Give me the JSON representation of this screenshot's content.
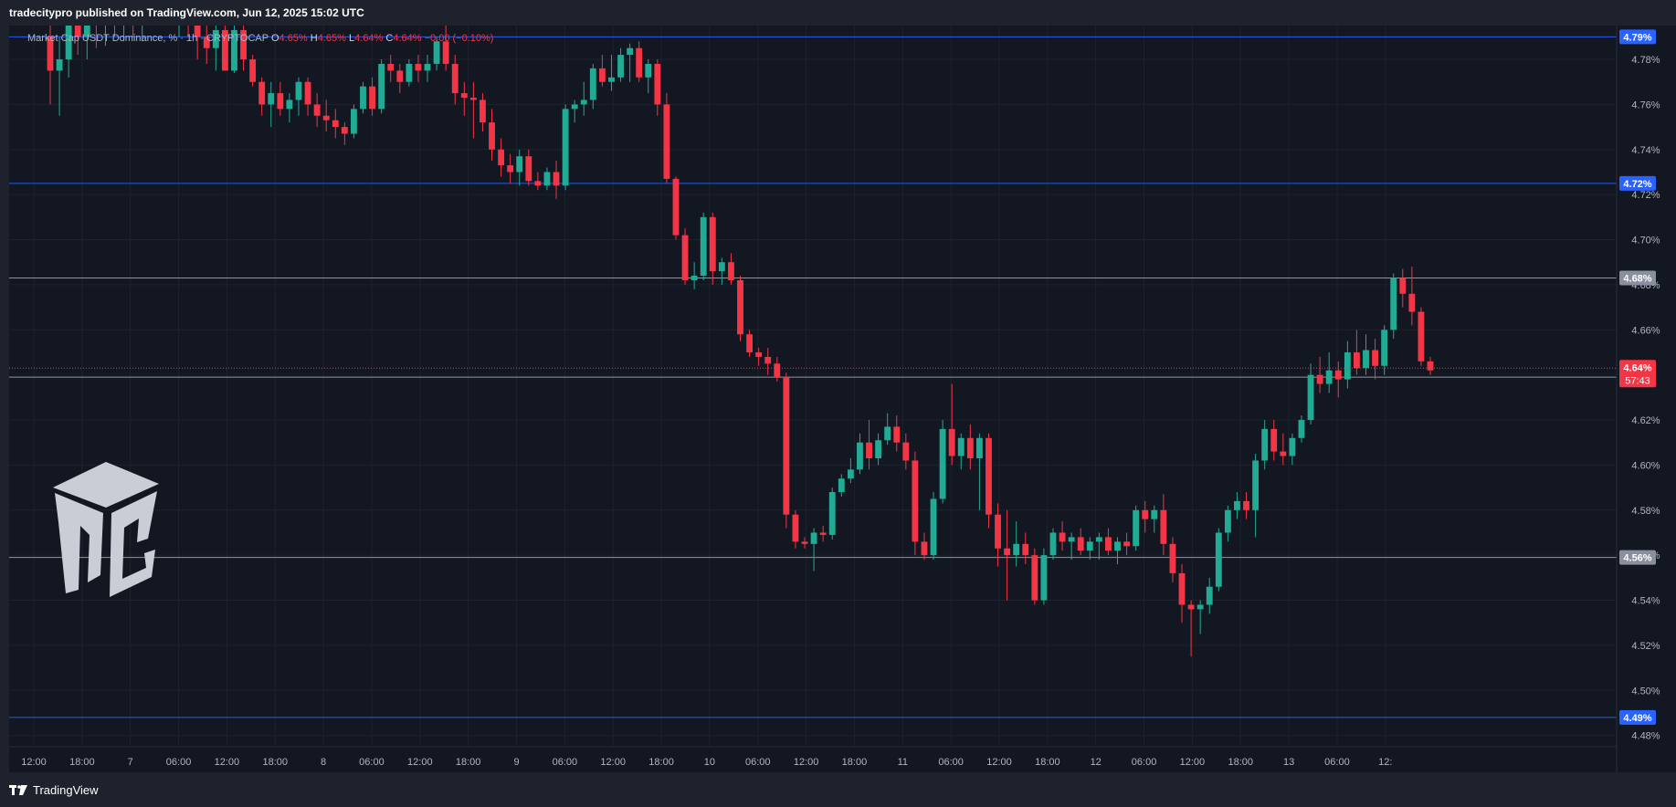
{
  "header": {
    "publish_text": "tradecitypro published on TradingView.com, Jun 12, 2025 15:02 UTC"
  },
  "legend": {
    "symbol": "Market Cap USDT Dominance, % · 1h · CRYPTOCAP",
    "o_label": "O",
    "o_value": "4.65%",
    "h_label": "H",
    "h_value": "4.65%",
    "l_label": "L",
    "l_value": "4.64%",
    "c_label": "C",
    "c_value": "4.64%",
    "change": "−0.00 (−0.10%)"
  },
  "footer": {
    "brand": "TradingView"
  },
  "colors": {
    "up": "#22ab94",
    "down": "#f23645",
    "background": "#131722",
    "grid": "#1e222d",
    "hline_blue": "#2962ff",
    "hline_gray": "#b2b5be"
  },
  "chart_data": {
    "type": "candlestick",
    "ylim": [
      4.475,
      4.795
    ],
    "y_ticks": [
      "4.48%",
      "4.50%",
      "4.52%",
      "4.54%",
      "4.56%",
      "4.58%",
      "4.60%",
      "4.62%",
      "4.66%",
      "4.68%",
      "4.70%",
      "4.72%",
      "4.74%",
      "4.76%",
      "4.78%"
    ],
    "x_ticks": [
      "12:00",
      "18:00",
      "7",
      "06:00",
      "12:00",
      "18:00",
      "8",
      "06:00",
      "12:00",
      "18:00",
      "9",
      "06:00",
      "12:00",
      "18:00",
      "10",
      "06:00",
      "12:00",
      "18:00",
      "11",
      "06:00",
      "12:00",
      "18:00",
      "12",
      "06:00",
      "12:00",
      "18:00",
      "13",
      "06:00",
      "12:"
    ],
    "horizontal_levels": [
      {
        "label": "4.79%",
        "value": 4.79,
        "style": "blue"
      },
      {
        "label": "4.72%",
        "value": 4.725,
        "style": "blue"
      },
      {
        "label": "4.68%",
        "value": 4.683,
        "style": "gray"
      },
      {
        "label": "4.64%",
        "value": 4.639,
        "style": "gray"
      },
      {
        "label": "4.56%",
        "value": 4.559,
        "style": "gray"
      },
      {
        "label": "4.49%",
        "value": 4.488,
        "style": "blue"
      }
    ],
    "current_price": {
      "label": "4.64%",
      "value": 4.643,
      "countdown": "57:43"
    },
    "candles": [
      {
        "o": 4.79,
        "h": 4.8,
        "l": 4.76,
        "c": 4.775
      },
      {
        "o": 4.775,
        "h": 4.79,
        "l": 4.755,
        "c": 4.78
      },
      {
        "o": 4.78,
        "h": 4.8,
        "l": 4.772,
        "c": 4.795
      },
      {
        "o": 4.795,
        "h": 4.805,
        "l": 4.782,
        "c": 4.79
      },
      {
        "o": 4.79,
        "h": 4.805,
        "l": 4.78,
        "c": 4.798
      },
      {
        "o": 4.798,
        "h": 4.805,
        "l": 4.785,
        "c": 4.795
      },
      {
        "o": 4.795,
        "h": 4.805,
        "l": 4.786,
        "c": 4.8
      },
      {
        "o": 4.8,
        "h": 4.805,
        "l": 4.79,
        "c": 4.798
      },
      {
        "o": 4.798,
        "h": 4.805,
        "l": 4.788,
        "c": 4.8
      },
      {
        "o": 4.8,
        "h": 4.805,
        "l": 4.79,
        "c": 4.798
      },
      {
        "o": 4.798,
        "h": 4.805,
        "l": 4.788,
        "c": 4.802
      },
      {
        "o": 4.802,
        "h": 4.805,
        "l": 4.795,
        "c": 4.8
      },
      {
        "o": 4.8,
        "h": 4.805,
        "l": 4.795,
        "c": 4.802
      },
      {
        "o": 4.802,
        "h": 4.805,
        "l": 4.795,
        "c": 4.8
      },
      {
        "o": 4.8,
        "h": 4.805,
        "l": 4.79,
        "c": 4.802
      },
      {
        "o": 4.802,
        "h": 4.805,
        "l": 4.79,
        "c": 4.8
      },
      {
        "o": 4.8,
        "h": 4.805,
        "l": 4.78,
        "c": 4.79
      },
      {
        "o": 4.79,
        "h": 4.8,
        "l": 4.778,
        "c": 4.785
      },
      {
        "o": 4.785,
        "h": 4.8,
        "l": 4.775,
        "c": 4.793
      },
      {
        "o": 4.793,
        "h": 4.8,
        "l": 4.775,
        "c": 4.775
      },
      {
        "o": 4.775,
        "h": 4.8,
        "l": 4.774,
        "c": 4.793
      },
      {
        "o": 4.793,
        "h": 4.798,
        "l": 4.775,
        "c": 4.78
      },
      {
        "o": 4.78,
        "h": 4.782,
        "l": 4.768,
        "c": 4.77
      },
      {
        "o": 4.77,
        "h": 4.772,
        "l": 4.755,
        "c": 4.76
      },
      {
        "o": 4.76,
        "h": 4.77,
        "l": 4.75,
        "c": 4.765
      },
      {
        "o": 4.765,
        "h": 4.77,
        "l": 4.755,
        "c": 4.758
      },
      {
        "o": 4.758,
        "h": 4.765,
        "l": 4.752,
        "c": 4.762
      },
      {
        "o": 4.762,
        "h": 4.772,
        "l": 4.755,
        "c": 4.77
      },
      {
        "o": 4.77,
        "h": 4.772,
        "l": 4.755,
        "c": 4.76
      },
      {
        "o": 4.76,
        "h": 4.765,
        "l": 4.75,
        "c": 4.755
      },
      {
        "o": 4.755,
        "h": 4.762,
        "l": 4.748,
        "c": 4.753
      },
      {
        "o": 4.753,
        "h": 4.758,
        "l": 4.745,
        "c": 4.75
      },
      {
        "o": 4.75,
        "h": 4.752,
        "l": 4.742,
        "c": 4.747
      },
      {
        "o": 4.747,
        "h": 4.76,
        "l": 4.745,
        "c": 4.758
      },
      {
        "o": 4.758,
        "h": 4.77,
        "l": 4.756,
        "c": 4.768
      },
      {
        "o": 4.768,
        "h": 4.772,
        "l": 4.755,
        "c": 4.758
      },
      {
        "o": 4.758,
        "h": 4.78,
        "l": 4.756,
        "c": 4.778
      },
      {
        "o": 4.778,
        "h": 4.782,
        "l": 4.77,
        "c": 4.775
      },
      {
        "o": 4.775,
        "h": 4.778,
        "l": 4.765,
        "c": 4.77
      },
      {
        "o": 4.77,
        "h": 4.78,
        "l": 4.768,
        "c": 4.778
      },
      {
        "o": 4.778,
        "h": 4.782,
        "l": 4.77,
        "c": 4.775
      },
      {
        "o": 4.775,
        "h": 4.782,
        "l": 4.77,
        "c": 4.778
      },
      {
        "o": 4.778,
        "h": 4.79,
        "l": 4.775,
        "c": 4.788
      },
      {
        "o": 4.788,
        "h": 4.795,
        "l": 4.775,
        "c": 4.778
      },
      {
        "o": 4.778,
        "h": 4.782,
        "l": 4.76,
        "c": 4.765
      },
      {
        "o": 4.765,
        "h": 4.77,
        "l": 4.755,
        "c": 4.763
      },
      {
        "o": 4.763,
        "h": 4.77,
        "l": 4.745,
        "c": 4.762
      },
      {
        "o": 4.762,
        "h": 4.765,
        "l": 4.748,
        "c": 4.752
      },
      {
        "o": 4.752,
        "h": 4.758,
        "l": 4.735,
        "c": 4.74
      },
      {
        "o": 4.74,
        "h": 4.745,
        "l": 4.728,
        "c": 4.733
      },
      {
        "o": 4.733,
        "h": 4.738,
        "l": 4.725,
        "c": 4.73
      },
      {
        "o": 4.73,
        "h": 4.74,
        "l": 4.724,
        "c": 4.737
      },
      {
        "o": 4.737,
        "h": 4.74,
        "l": 4.724,
        "c": 4.726
      },
      {
        "o": 4.726,
        "h": 4.73,
        "l": 4.722,
        "c": 4.724
      },
      {
        "o": 4.724,
        "h": 4.732,
        "l": 4.722,
        "c": 4.73
      },
      {
        "o": 4.73,
        "h": 4.735,
        "l": 4.718,
        "c": 4.724
      },
      {
        "o": 4.724,
        "h": 4.76,
        "l": 4.722,
        "c": 4.758
      },
      {
        "o": 4.758,
        "h": 4.762,
        "l": 4.752,
        "c": 4.76
      },
      {
        "o": 4.76,
        "h": 4.77,
        "l": 4.755,
        "c": 4.762
      },
      {
        "o": 4.762,
        "h": 4.778,
        "l": 4.758,
        "c": 4.776
      },
      {
        "o": 4.776,
        "h": 4.782,
        "l": 4.768,
        "c": 4.77
      },
      {
        "o": 4.77,
        "h": 4.782,
        "l": 4.766,
        "c": 4.772
      },
      {
        "o": 4.772,
        "h": 4.785,
        "l": 4.77,
        "c": 4.782
      },
      {
        "o": 4.782,
        "h": 4.787,
        "l": 4.77,
        "c": 4.785
      },
      {
        "o": 4.785,
        "h": 4.788,
        "l": 4.77,
        "c": 4.772
      },
      {
        "o": 4.772,
        "h": 4.78,
        "l": 4.765,
        "c": 4.778
      },
      {
        "o": 4.778,
        "h": 4.78,
        "l": 4.755,
        "c": 4.76
      },
      {
        "o": 4.76,
        "h": 4.765,
        "l": 4.725,
        "c": 4.727
      },
      {
        "o": 4.727,
        "h": 4.728,
        "l": 4.7,
        "c": 4.702
      },
      {
        "o": 4.702,
        "h": 4.705,
        "l": 4.68,
        "c": 4.682
      },
      {
        "o": 4.682,
        "h": 4.69,
        "l": 4.678,
        "c": 4.684
      },
      {
        "o": 4.684,
        "h": 4.712,
        "l": 4.682,
        "c": 4.71
      },
      {
        "o": 4.71,
        "h": 4.712,
        "l": 4.68,
        "c": 4.686
      },
      {
        "o": 4.686,
        "h": 4.692,
        "l": 4.68,
        "c": 4.69
      },
      {
        "o": 4.69,
        "h": 4.694,
        "l": 4.68,
        "c": 4.682
      },
      {
        "o": 4.682,
        "h": 4.684,
        "l": 4.655,
        "c": 4.658
      },
      {
        "o": 4.658,
        "h": 4.66,
        "l": 4.648,
        "c": 4.65
      },
      {
        "o": 4.65,
        "h": 4.652,
        "l": 4.644,
        "c": 4.648
      },
      {
        "o": 4.648,
        "h": 4.652,
        "l": 4.64,
        "c": 4.645
      },
      {
        "o": 4.645,
        "h": 4.648,
        "l": 4.637,
        "c": 4.639
      },
      {
        "o": 4.639,
        "h": 4.641,
        "l": 4.572,
        "c": 4.578
      },
      {
        "o": 4.578,
        "h": 4.58,
        "l": 4.563,
        "c": 4.566
      },
      {
        "o": 4.566,
        "h": 4.568,
        "l": 4.563,
        "c": 4.565
      },
      {
        "o": 4.565,
        "h": 4.572,
        "l": 4.553,
        "c": 4.57
      },
      {
        "o": 4.57,
        "h": 4.573,
        "l": 4.566,
        "c": 4.569
      },
      {
        "o": 4.569,
        "h": 4.59,
        "l": 4.567,
        "c": 4.588
      },
      {
        "o": 4.588,
        "h": 4.596,
        "l": 4.586,
        "c": 4.594
      },
      {
        "o": 4.594,
        "h": 4.603,
        "l": 4.592,
        "c": 4.598
      },
      {
        "o": 4.598,
        "h": 4.614,
        "l": 4.596,
        "c": 4.61
      },
      {
        "o": 4.61,
        "h": 4.62,
        "l": 4.598,
        "c": 4.603
      },
      {
        "o": 4.603,
        "h": 4.614,
        "l": 4.6,
        "c": 4.611
      },
      {
        "o": 4.611,
        "h": 4.623,
        "l": 4.609,
        "c": 4.617
      },
      {
        "o": 4.617,
        "h": 4.622,
        "l": 4.606,
        "c": 4.61
      },
      {
        "o": 4.61,
        "h": 4.614,
        "l": 4.598,
        "c": 4.602
      },
      {
        "o": 4.602,
        "h": 4.606,
        "l": 4.56,
        "c": 4.566
      },
      {
        "o": 4.566,
        "h": 4.57,
        "l": 4.558,
        "c": 4.56
      },
      {
        "o": 4.56,
        "h": 4.588,
        "l": 4.558,
        "c": 4.585
      },
      {
        "o": 4.585,
        "h": 4.62,
        "l": 4.583,
        "c": 4.616
      },
      {
        "o": 4.616,
        "h": 4.636,
        "l": 4.6,
        "c": 4.604
      },
      {
        "o": 4.604,
        "h": 4.614,
        "l": 4.598,
        "c": 4.612
      },
      {
        "o": 4.612,
        "h": 4.618,
        "l": 4.598,
        "c": 4.603
      },
      {
        "o": 4.603,
        "h": 4.614,
        "l": 4.58,
        "c": 4.612
      },
      {
        "o": 4.612,
        "h": 4.614,
        "l": 4.572,
        "c": 4.578
      },
      {
        "o": 4.578,
        "h": 4.583,
        "l": 4.555,
        "c": 4.563
      },
      {
        "o": 4.563,
        "h": 4.58,
        "l": 4.54,
        "c": 4.56
      },
      {
        "o": 4.56,
        "h": 4.575,
        "l": 4.555,
        "c": 4.565
      },
      {
        "o": 4.565,
        "h": 4.57,
        "l": 4.556,
        "c": 4.56
      },
      {
        "o": 4.56,
        "h": 4.563,
        "l": 4.538,
        "c": 4.54
      },
      {
        "o": 4.54,
        "h": 4.563,
        "l": 4.538,
        "c": 4.56
      },
      {
        "o": 4.56,
        "h": 4.572,
        "l": 4.558,
        "c": 4.57
      },
      {
        "o": 4.57,
        "h": 4.575,
        "l": 4.562,
        "c": 4.566
      },
      {
        "o": 4.566,
        "h": 4.57,
        "l": 4.558,
        "c": 4.568
      },
      {
        "o": 4.568,
        "h": 4.572,
        "l": 4.56,
        "c": 4.562
      },
      {
        "o": 4.562,
        "h": 4.568,
        "l": 4.558,
        "c": 4.566
      },
      {
        "o": 4.566,
        "h": 4.57,
        "l": 4.558,
        "c": 4.568
      },
      {
        "o": 4.568,
        "h": 4.572,
        "l": 4.56,
        "c": 4.562
      },
      {
        "o": 4.562,
        "h": 4.568,
        "l": 4.556,
        "c": 4.566
      },
      {
        "o": 4.566,
        "h": 4.57,
        "l": 4.56,
        "c": 4.564
      },
      {
        "o": 4.564,
        "h": 4.582,
        "l": 4.562,
        "c": 4.58
      },
      {
        "o": 4.58,
        "h": 4.584,
        "l": 4.57,
        "c": 4.576
      },
      {
        "o": 4.576,
        "h": 4.582,
        "l": 4.57,
        "c": 4.58
      },
      {
        "o": 4.58,
        "h": 4.587,
        "l": 4.56,
        "c": 4.565
      },
      {
        "o": 4.565,
        "h": 4.568,
        "l": 4.548,
        "c": 4.552
      },
      {
        "o": 4.552,
        "h": 4.556,
        "l": 4.53,
        "c": 4.538
      },
      {
        "o": 4.538,
        "h": 4.54,
        "l": 4.515,
        "c": 4.536
      },
      {
        "o": 4.536,
        "h": 4.54,
        "l": 4.525,
        "c": 4.538
      },
      {
        "o": 4.538,
        "h": 4.55,
        "l": 4.534,
        "c": 4.546
      },
      {
        "o": 4.546,
        "h": 4.572,
        "l": 4.544,
        "c": 4.57
      },
      {
        "o": 4.57,
        "h": 4.582,
        "l": 4.566,
        "c": 4.58
      },
      {
        "o": 4.58,
        "h": 4.588,
        "l": 4.576,
        "c": 4.584
      },
      {
        "o": 4.584,
        "h": 4.588,
        "l": 4.576,
        "c": 4.58
      },
      {
        "o": 4.58,
        "h": 4.605,
        "l": 4.568,
        "c": 4.602
      },
      {
        "o": 4.602,
        "h": 4.62,
        "l": 4.598,
        "c": 4.616
      },
      {
        "o": 4.616,
        "h": 4.62,
        "l": 4.602,
        "c": 4.606
      },
      {
        "o": 4.606,
        "h": 4.614,
        "l": 4.6,
        "c": 4.604
      },
      {
        "o": 4.604,
        "h": 4.614,
        "l": 4.6,
        "c": 4.612
      },
      {
        "o": 4.612,
        "h": 4.622,
        "l": 4.61,
        "c": 4.62
      },
      {
        "o": 4.62,
        "h": 4.645,
        "l": 4.618,
        "c": 4.64
      },
      {
        "o": 4.64,
        "h": 4.648,
        "l": 4.632,
        "c": 4.636
      },
      {
        "o": 4.636,
        "h": 4.65,
        "l": 4.632,
        "c": 4.642
      },
      {
        "o": 4.642,
        "h": 4.646,
        "l": 4.63,
        "c": 4.638
      },
      {
        "o": 4.638,
        "h": 4.655,
        "l": 4.634,
        "c": 4.65
      },
      {
        "o": 4.65,
        "h": 4.66,
        "l": 4.64,
        "c": 4.643
      },
      {
        "o": 4.643,
        "h": 4.658,
        "l": 4.64,
        "c": 4.651
      },
      {
        "o": 4.651,
        "h": 4.656,
        "l": 4.638,
        "c": 4.644
      },
      {
        "o": 4.644,
        "h": 4.662,
        "l": 4.64,
        "c": 4.66
      },
      {
        "o": 4.66,
        "h": 4.685,
        "l": 4.656,
        "c": 4.683
      },
      {
        "o": 4.683,
        "h": 4.687,
        "l": 4.67,
        "c": 4.676
      },
      {
        "o": 4.676,
        "h": 4.688,
        "l": 4.662,
        "c": 4.668
      },
      {
        "o": 4.668,
        "h": 4.67,
        "l": 4.644,
        "c": 4.646
      },
      {
        "o": 4.646,
        "h": 4.648,
        "l": 4.64,
        "c": 4.642
      }
    ]
  }
}
